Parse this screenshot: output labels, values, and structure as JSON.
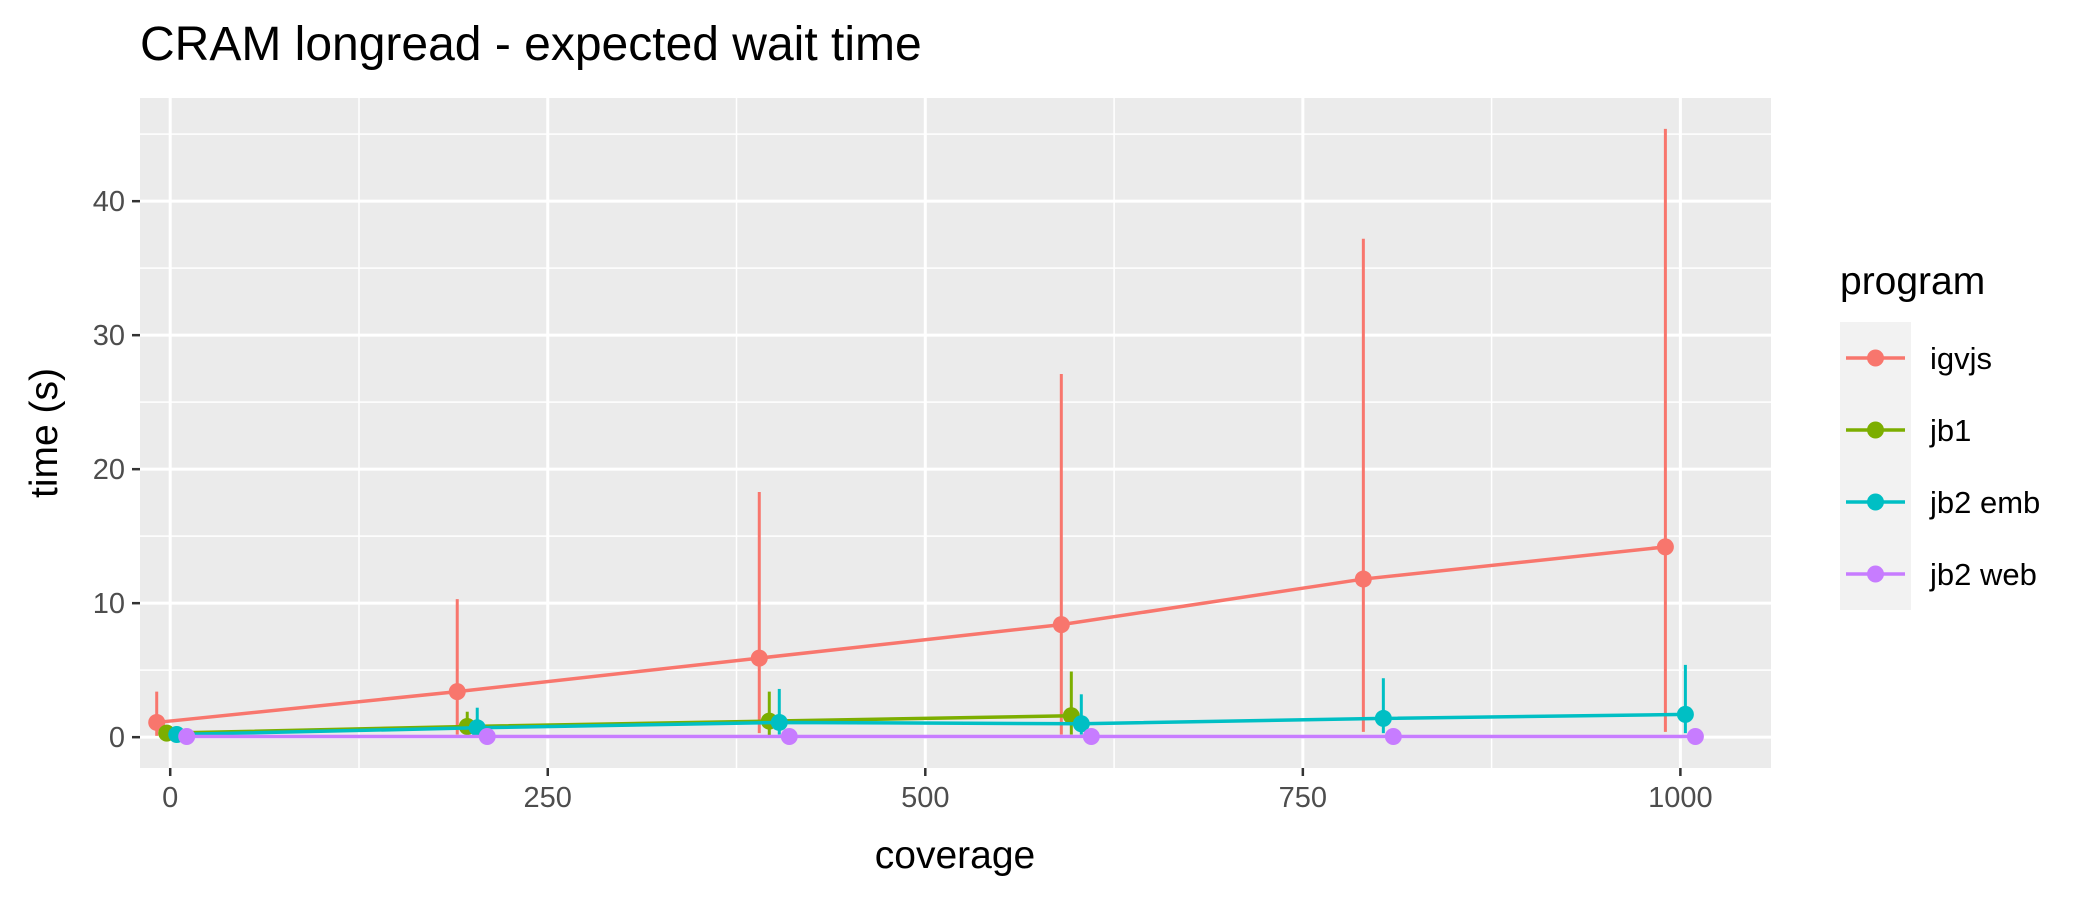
{
  "chart_data": {
    "type": "line",
    "title": "CRAM longread - expected wait time",
    "xlabel": "coverage",
    "ylabel": "time (s)",
    "xlim": [
      -20,
      1060
    ],
    "ylim": [
      -2.3,
      47.7
    ],
    "x_ticks": [
      0,
      250,
      500,
      750,
      1000
    ],
    "y_ticks": [
      0,
      10,
      20,
      30,
      40
    ],
    "grid": true,
    "legend_position": "right",
    "legend_title": "program",
    "series": [
      {
        "name": "igvjs",
        "color": "#F8766D",
        "x": [
          1,
          200,
          400,
          600,
          800,
          1000
        ],
        "y": [
          1.1,
          3.4,
          5.9,
          8.4,
          11.8,
          14.2
        ],
        "err_low": [
          0.1,
          0.2,
          0.3,
          0.2,
          0.4,
          0.4
        ],
        "err_high": [
          3.4,
          10.3,
          18.3,
          27.1,
          37.2,
          45.4
        ]
      },
      {
        "name": "jb1",
        "color": "#7CAE00",
        "x": [
          1,
          200,
          400,
          600
        ],
        "y": [
          0.3,
          0.8,
          1.2,
          1.6
        ],
        "err_low": [
          0.0,
          0.1,
          0.1,
          0.2
        ],
        "err_high": [
          0.8,
          1.9,
          3.4,
          4.9
        ]
      },
      {
        "name": "jb2 emb",
        "color": "#00BFC4",
        "x": [
          1,
          200,
          400,
          600,
          800,
          1000
        ],
        "y": [
          0.2,
          0.7,
          1.1,
          1.0,
          1.4,
          1.7
        ],
        "err_low": [
          0.0,
          0.1,
          0.2,
          0.2,
          0.3,
          0.3
        ],
        "err_high": [
          0.6,
          2.2,
          3.6,
          3.2,
          4.4,
          5.4
        ]
      },
      {
        "name": "jb2 web",
        "color": "#C77CFF",
        "x": [
          1,
          200,
          400,
          600,
          800,
          1000
        ],
        "y": [
          0.05,
          0.05,
          0.05,
          0.05,
          0.05,
          0.05
        ],
        "err_low": [
          0.0,
          0.0,
          0.0,
          0.0,
          0.0,
          0.0
        ],
        "err_high": [
          0.1,
          0.1,
          0.1,
          0.1,
          0.1,
          0.1
        ]
      }
    ]
  },
  "colors": {
    "panel_background": "#EBEBEB",
    "grid_line": "#FFFFFF",
    "legend_key_background": "#F2F2F2",
    "tick_text": "#4D4D4D"
  }
}
